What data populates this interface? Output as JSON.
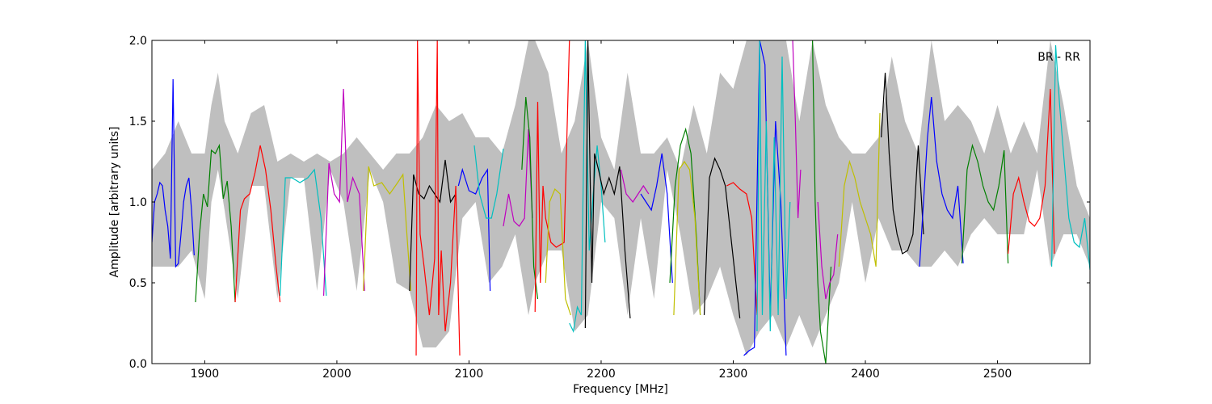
{
  "chart_data": {
    "type": "line",
    "title": "",
    "xlabel": "Frequency [MHz]",
    "ylabel": "Amplitude [arbitrary units]",
    "xlim": [
      1860,
      2570
    ],
    "ylim": [
      0.0,
      2.0
    ],
    "xticks": [
      1900,
      2000,
      2100,
      2200,
      2300,
      2400,
      2500
    ],
    "yticks": [
      0.0,
      0.5,
      1.0,
      1.5,
      2.0
    ],
    "xtick_labels": [
      "1900",
      "2000",
      "2100",
      "2200",
      "2300",
      "2400",
      "2500"
    ],
    "ytick_labels": [
      "0.0",
      "0.5",
      "1.0",
      "1.5",
      "2.0"
    ],
    "grid": false,
    "annotation": "BR - RR",
    "envelope": {
      "color": "#bfbfbf",
      "x": [
        1860,
        1870,
        1880,
        1890,
        1900,
        1905,
        1910,
        1915,
        1925,
        1935,
        1945,
        1955,
        1965,
        1975,
        1985,
        1995,
        2005,
        2015,
        2025,
        2035,
        2045,
        2055,
        2065,
        2075,
        2085,
        2095,
        2105,
        2115,
        2125,
        2135,
        2145,
        2150,
        2160,
        2170,
        2180,
        2190,
        2200,
        2210,
        2220,
        2230,
        2240,
        2250,
        2260,
        2270,
        2280,
        2290,
        2300,
        2310,
        2320,
        2330,
        2340,
        2350,
        2360,
        2370,
        2380,
        2390,
        2400,
        2410,
        2420,
        2430,
        2440,
        2450,
        2460,
        2470,
        2480,
        2490,
        2500,
        2510,
        2520,
        2530,
        2540,
        2550,
        2560,
        2570
      ],
      "upper": [
        1.2,
        1.3,
        1.5,
        1.3,
        1.3,
        1.6,
        1.8,
        1.5,
        1.3,
        1.55,
        1.6,
        1.25,
        1.3,
        1.25,
        1.3,
        1.25,
        1.3,
        1.4,
        1.3,
        1.2,
        1.3,
        1.3,
        1.4,
        1.6,
        1.5,
        1.55,
        1.4,
        1.4,
        1.3,
        1.6,
        2.0,
        2.0,
        1.8,
        1.3,
        1.5,
        2.0,
        1.4,
        1.2,
        1.8,
        1.3,
        1.3,
        1.4,
        1.2,
        1.6,
        1.3,
        1.8,
        1.7,
        2.0,
        2.0,
        2.0,
        2.0,
        1.5,
        2.0,
        1.6,
        1.4,
        1.3,
        1.3,
        1.4,
        1.9,
        1.5,
        1.3,
        2.0,
        1.5,
        1.6,
        1.5,
        1.3,
        1.6,
        1.3,
        1.5,
        1.3,
        2.0,
        1.6,
        1.1,
        0.9
      ],
      "lower": [
        0.6,
        0.6,
        0.6,
        0.7,
        0.4,
        1.0,
        1.2,
        0.95,
        0.4,
        1.1,
        1.1,
        0.4,
        1.15,
        1.15,
        0.45,
        1.2,
        1.0,
        0.45,
        1.2,
        1.0,
        0.5,
        0.45,
        0.1,
        0.1,
        0.2,
        0.9,
        1.0,
        0.5,
        0.6,
        0.8,
        0.3,
        0.5,
        0.7,
        0.7,
        0.2,
        0.3,
        1.0,
        0.9,
        0.3,
        0.9,
        0.4,
        1.2,
        0.8,
        0.3,
        0.4,
        0.6,
        0.3,
        0.05,
        0.2,
        0.3,
        0.1,
        0.3,
        0.1,
        0.3,
        0.5,
        1.0,
        0.5,
        0.9,
        0.7,
        0.7,
        0.6,
        0.6,
        0.7,
        0.6,
        0.8,
        0.9,
        0.8,
        0.8,
        0.8,
        1.2,
        0.6,
        0.8,
        0.8,
        0.6
      ]
    },
    "series": [
      {
        "color": "#0000ff",
        "x": [
          1860,
          1862,
          1864,
          1866,
          1868,
          1870,
          1872,
          1874,
          1876,
          1878,
          1880,
          1882,
          1884,
          1886,
          1888,
          1890,
          1892
        ],
        "y": [
          0.75,
          1.0,
          1.05,
          1.12,
          1.1,
          0.95,
          0.85,
          0.65,
          1.76,
          0.6,
          0.62,
          0.8,
          1.0,
          1.1,
          1.15,
          0.95,
          0.67
        ]
      },
      {
        "color": "#007f00",
        "x": [
          1893,
          1896,
          1899,
          1902,
          1905,
          1908,
          1911,
          1914,
          1917,
          1920,
          1923
        ],
        "y": [
          0.38,
          0.8,
          1.05,
          0.97,
          1.32,
          1.3,
          1.35,
          1.02,
          1.13,
          0.85,
          0.38
        ]
      },
      {
        "color": "#ff0000",
        "x": [
          1923,
          1927,
          1930,
          1934,
          1938,
          1942,
          1946,
          1950,
          1954,
          1957
        ],
        "y": [
          0.38,
          0.95,
          1.02,
          1.05,
          1.18,
          1.35,
          1.2,
          0.95,
          0.6,
          0.38
        ]
      },
      {
        "color": "#00bfbf",
        "x": [
          1957,
          1961,
          1966,
          1972,
          1978,
          1983,
          1988,
          1992
        ],
        "y": [
          0.42,
          1.15,
          1.15,
          1.12,
          1.15,
          1.2,
          0.9,
          0.42
        ]
      },
      {
        "color": "#bf00bf",
        "x": [
          1990,
          1994,
          1998,
          2002,
          2005,
          2008,
          2012,
          2017,
          2021
        ],
        "y": [
          0.42,
          1.24,
          1.05,
          1.0,
          1.7,
          1.0,
          1.15,
          1.05,
          0.45
        ]
      },
      {
        "color": "#bfbf00",
        "x": [
          2020,
          2024,
          2028,
          2034,
          2040,
          2046,
          2050,
          2053,
          2056
        ],
        "y": [
          0.45,
          1.22,
          1.1,
          1.12,
          1.05,
          1.12,
          1.17,
          0.8,
          0.45
        ]
      },
      {
        "color": "#000000",
        "x": [
          2055,
          2058,
          2062,
          2066,
          2070,
          2074,
          2078,
          2082,
          2086,
          2090
        ],
        "y": [
          0.45,
          1.17,
          1.05,
          1.02,
          1.1,
          1.05,
          1.0,
          1.26,
          1.0,
          1.05
        ]
      },
      {
        "color": "#ff0000",
        "x": [
          2060,
          2061,
          2063,
          2066,
          2070,
          2074,
          2076,
          2077,
          2079,
          2082,
          2086,
          2090,
          2093
        ],
        "y": [
          0.05,
          2.0,
          0.8,
          0.6,
          0.3,
          0.65,
          2.0,
          0.3,
          0.7,
          0.2,
          0.5,
          1.1,
          0.05
        ]
      },
      {
        "color": "#0000ff",
        "x": [
          2092,
          2095,
          2100,
          2105,
          2110,
          2114,
          2116
        ],
        "y": [
          1.1,
          1.2,
          1.07,
          1.05,
          1.15,
          1.2,
          0.45
        ]
      },
      {
        "color": "#00bfbf",
        "x": [
          2104,
          2108,
          2113,
          2117,
          2121,
          2126
        ],
        "y": [
          1.35,
          1.05,
          0.9,
          0.9,
          1.05,
          1.33
        ]
      },
      {
        "color": "#bf00bf",
        "x": [
          2126,
          2130,
          2134,
          2138,
          2142,
          2145,
          2148
        ],
        "y": [
          0.85,
          1.05,
          0.88,
          0.85,
          0.9,
          1.45,
          0.9
        ]
      },
      {
        "color": "#007f00",
        "x": [
          2140,
          2143,
          2146,
          2149,
          2152
        ],
        "y": [
          1.2,
          1.65,
          1.4,
          0.6,
          0.4
        ]
      },
      {
        "color": "#ff0000",
        "x": [
          2150,
          2152,
          2154,
          2156,
          2158,
          2162,
          2166,
          2172,
          2176
        ],
        "y": [
          0.32,
          1.62,
          0.5,
          1.1,
          0.9,
          0.75,
          0.72,
          0.75,
          2.0
        ]
      },
      {
        "color": "#bfbf00",
        "x": [
          2158,
          2161,
          2165,
          2169,
          2173,
          2177
        ],
        "y": [
          0.5,
          1.0,
          1.08,
          1.05,
          0.4,
          0.3
        ]
      },
      {
        "color": "#00bfbf",
        "x": [
          2176,
          2179,
          2182,
          2185,
          2188,
          2191,
          2194,
          2197,
          2200,
          2203
        ],
        "y": [
          0.25,
          0.2,
          0.35,
          0.3,
          2.0,
          0.7,
          1.05,
          1.35,
          1.1,
          0.75
        ]
      },
      {
        "color": "#000000",
        "x": [
          2188,
          2190,
          2193,
          2195,
          2198,
          2202,
          2206,
          2210,
          2214,
          2218,
          2222
        ],
        "y": [
          0.22,
          2.0,
          0.5,
          1.3,
          1.2,
          1.05,
          1.15,
          1.05,
          1.22,
          0.7,
          0.28
        ]
      },
      {
        "color": "#bf00bf",
        "x": [
          2215,
          2219,
          2224,
          2228,
          2232,
          2236
        ],
        "y": [
          1.2,
          1.05,
          1.0,
          1.05,
          1.1,
          1.05
        ]
      },
      {
        "color": "#0000ff",
        "x": [
          2230,
          2234,
          2238,
          2242,
          2246,
          2250,
          2254
        ],
        "y": [
          1.05,
          1.0,
          0.95,
          1.1,
          1.3,
          1.05,
          0.5
        ]
      },
      {
        "color": "#007f00",
        "x": [
          2252,
          2256,
          2260,
          2264,
          2268,
          2272,
          2275
        ],
        "y": [
          0.5,
          1.1,
          1.35,
          1.45,
          1.3,
          0.8,
          0.3
        ]
      },
      {
        "color": "#bfbf00",
        "x": [
          2255,
          2259,
          2263,
          2267,
          2271,
          2275
        ],
        "y": [
          0.3,
          1.2,
          1.25,
          1.2,
          0.9,
          0.3
        ]
      },
      {
        "color": "#000000",
        "x": [
          2278,
          2282,
          2286,
          2290,
          2294,
          2298,
          2302,
          2305
        ],
        "y": [
          0.3,
          1.15,
          1.27,
          1.2,
          1.1,
          0.8,
          0.5,
          0.28
        ]
      },
      {
        "color": "#ff0000",
        "x": [
          2295,
          2300,
          2305,
          2310,
          2314,
          2318
        ],
        "y": [
          1.1,
          1.12,
          1.08,
          1.05,
          0.9,
          0.3
        ]
      },
      {
        "color": "#0000ff",
        "x": [
          2308,
          2312,
          2316,
          2320,
          2324,
          2328,
          2332,
          2336,
          2340
        ],
        "y": [
          0.05,
          0.08,
          0.1,
          2.0,
          1.85,
          0.3,
          1.5,
          1.0,
          0.05
        ]
      },
      {
        "color": "#00bfbf",
        "x": [
          2318,
          2320,
          2322,
          2325,
          2328,
          2331,
          2334,
          2337,
          2340,
          2343
        ],
        "y": [
          0.2,
          2.0,
          0.3,
          1.5,
          0.2,
          1.4,
          0.3,
          1.9,
          0.4,
          1.0
        ]
      },
      {
        "color": "#bf00bf",
        "x": [
          2345,
          2347,
          2349,
          2351
        ],
        "y": [
          2.0,
          1.5,
          0.9,
          1.2
        ]
      },
      {
        "color": "#007f00",
        "x": [
          2360,
          2362,
          2364,
          2366,
          2368,
          2370,
          2372,
          2374
        ],
        "y": [
          2.0,
          1.0,
          0.5,
          0.2,
          0.1,
          0.0,
          0.3,
          0.6
        ]
      },
      {
        "color": "#bf00bf",
        "x": [
          2364,
          2367,
          2370,
          2373,
          2376,
          2379
        ],
        "y": [
          1.0,
          0.6,
          0.4,
          0.5,
          0.55,
          0.8
        ]
      },
      {
        "color": "#bfbf00",
        "x": [
          2380,
          2384,
          2388,
          2392,
          2396,
          2400,
          2404,
          2408,
          2411
        ],
        "y": [
          0.6,
          1.1,
          1.25,
          1.15,
          1.0,
          0.9,
          0.8,
          0.6,
          1.55
        ]
      },
      {
        "color": "#000000",
        "x": [
          2412,
          2415,
          2418,
          2421,
          2424,
          2428,
          2432,
          2436,
          2440,
          2444
        ],
        "y": [
          1.4,
          1.8,
          1.3,
          0.95,
          0.8,
          0.68,
          0.7,
          0.8,
          1.35,
          0.8
        ]
      },
      {
        "color": "#0000ff",
        "x": [
          2441,
          2444,
          2447,
          2450,
          2454,
          2458,
          2462,
          2466,
          2470,
          2474
        ],
        "y": [
          0.6,
          1.0,
          1.4,
          1.65,
          1.25,
          1.05,
          0.95,
          0.9,
          1.1,
          0.62
        ]
      },
      {
        "color": "#007f00",
        "x": [
          2473,
          2477,
          2481,
          2485,
          2489,
          2493,
          2497,
          2501,
          2505,
          2508
        ],
        "y": [
          0.62,
          1.2,
          1.35,
          1.25,
          1.1,
          1.0,
          0.95,
          1.1,
          1.32,
          0.62
        ]
      },
      {
        "color": "#ff0000",
        "x": [
          2508,
          2512,
          2516,
          2520,
          2524,
          2528,
          2532,
          2536,
          2540,
          2543
        ],
        "y": [
          0.68,
          1.05,
          1.15,
          1.0,
          0.88,
          0.85,
          0.9,
          1.1,
          1.7,
          0.68
        ]
      },
      {
        "color": "#00bfbf",
        "x": [
          2541,
          2544,
          2547,
          2550,
          2554,
          2558,
          2562,
          2566,
          2570
        ],
        "y": [
          0.6,
          1.97,
          1.6,
          1.3,
          0.9,
          0.75,
          0.72,
          0.9,
          0.58
        ]
      }
    ]
  }
}
